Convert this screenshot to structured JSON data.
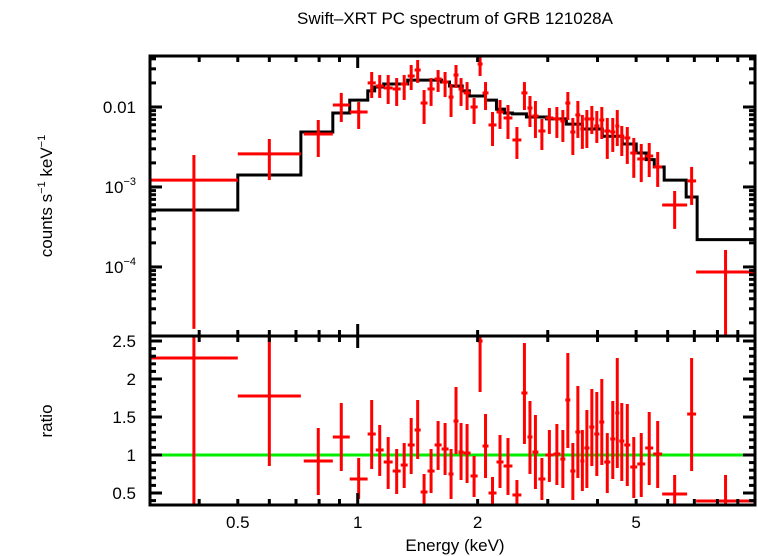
{
  "chart_data": [
    {
      "type": "scatter",
      "panel": "spectrum",
      "title": "Swift–XRT PC spectrum of GRB 121028A",
      "xlabel": "Energy (keV)",
      "ylabel": {
        "text": "counts s",
        "exp1": "−1",
        "mid": " keV",
        "exp2": "−1"
      },
      "xscale": "log",
      "yscale": "log",
      "xlim": [
        0.301,
        9.94
      ],
      "ylim": [
        1.37e-05,
        0.0434
      ],
      "grid": false,
      "yticks": [
        {
          "value": 0.01,
          "label": "0.01"
        },
        {
          "value": 0.001,
          "base": "10",
          "exp": "−3"
        },
        {
          "value": 0.0001,
          "base": "10",
          "exp": "−4"
        }
      ],
      "colors": {
        "data": "#ff0000",
        "model": "#000000",
        "axis": "#000000"
      },
      "columns": [
        "e_lo",
        "e_hi",
        "rate",
        "rate_err_a",
        "rate_err_b",
        "ratio",
        "ratio_err_a",
        "ratio_err_b"
      ],
      "points": [
        [
          0.301,
          0.5,
          0.00122,
          0.00251,
          1.68e-05,
          2.276,
          3.0,
          0.2
        ],
        [
          0.5,
          0.72,
          0.00259,
          0.00398,
          0.00122,
          1.776,
          3.0,
          0.855
        ],
        [
          0.732,
          0.866,
          0.0046,
          0.00688,
          0.00237,
          0.921,
          1.355,
          0.474
        ],
        [
          0.866,
          0.955,
          0.0106,
          0.015,
          0.00649,
          1.237,
          1.684,
          0.789
        ],
        [
          0.955,
          1.059,
          0.00866,
          0.01155,
          0.00531,
          0.684,
          0.961,
          0.421
        ],
        [
          1.059,
          1.11,
          0.02,
          0.0274,
          0.01296,
          1.276,
          1.724,
          0.816
        ],
        [
          1.11,
          1.162,
          0.0183,
          0.0251,
          0.01296,
          1.066,
          1.395,
          0.724
        ],
        [
          1.162,
          1.224,
          0.0173,
          0.0251,
          0.0109,
          0.908,
          1.237,
          0.553
        ],
        [
          1.224,
          1.282,
          0.0168,
          0.023,
          0.0103,
          0.789,
          1.079,
          0.487
        ],
        [
          1.282,
          1.335,
          0.0194,
          0.0251,
          0.01224,
          0.868,
          1.158,
          0.566
        ],
        [
          1.335,
          1.39,
          0.0244,
          0.0335,
          0.0163,
          1.132,
          1.487,
          0.75
        ],
        [
          1.39,
          1.439,
          0.029,
          0.0387,
          0.02,
          1.329,
          1.724,
          0.947
        ],
        [
          1.439,
          1.497,
          0.0112,
          0.0163,
          0.00613,
          0.513,
          0.75,
          0.2
        ],
        [
          1.497,
          1.56,
          0.0168,
          0.023,
          0.0103,
          0.789,
          1.079,
          0.5
        ],
        [
          1.56,
          1.624,
          0.0224,
          0.029,
          0.0154,
          1.132,
          1.447,
          0.803
        ],
        [
          1.624,
          1.691,
          0.0205,
          0.0274,
          0.0133,
          1.079,
          1.421,
          0.737
        ],
        [
          1.691,
          1.74,
          0.0133,
          0.0194,
          0.0075,
          0.75,
          1.079,
          0.421
        ],
        [
          1.74,
          1.791,
          0.0251,
          0.0335,
          0.0173,
          1.447,
          1.895,
          1.013
        ],
        [
          1.791,
          1.844,
          0.0168,
          0.023,
          0.0103,
          1.039,
          1.421,
          0.671
        ],
        [
          1.844,
          1.92,
          0.015,
          0.0205,
          0.00917,
          1.026,
          1.408,
          0.632
        ],
        [
          1.92,
          2.0,
          0.01,
          0.01296,
          0.00613,
          0.724,
          0.987,
          0.447
        ],
        [
          2.0,
          2.058,
          0.0345,
          0.0434,
          0.0244,
          2.5,
          3.0,
          1.829
        ],
        [
          2.058,
          2.13,
          0.015,
          0.0205,
          0.00917,
          1.118,
          1.539,
          0.697
        ],
        [
          2.13,
          2.231,
          0.00596,
          0.00866,
          0.00325,
          0.5,
          0.711,
          0.2
        ],
        [
          2.231,
          2.323,
          0.00866,
          0.01224,
          0.00531,
          0.908,
          1.263,
          0.566
        ],
        [
          2.323,
          2.446,
          0.00729,
          0.0106,
          0.00398,
          0.855,
          1.224,
          0.474
        ],
        [
          2.446,
          2.576,
          0.00387,
          0.00562,
          0.00224,
          0.474,
          0.671,
          0.2
        ],
        [
          2.576,
          2.668,
          0.015,
          0.0205,
          0.00917,
          1.816,
          2.474,
          1.145
        ],
        [
          2.668,
          2.746,
          0.00972,
          0.01373,
          0.00562,
          1.237,
          1.711,
          0.75
        ],
        [
          2.746,
          2.842,
          0.00772,
          0.01189,
          0.0041,
          1.039,
          1.526,
          0.553
        ],
        [
          2.842,
          2.959,
          0.00501,
          0.00708,
          0.0029,
          0.684,
          0.961,
          0.408
        ],
        [
          2.959,
          3.099,
          0.00729,
          0.00972,
          0.0046,
          1.0,
          1.329,
          0.645
        ],
        [
          3.099,
          3.227,
          0.00708,
          0.01,
          0.0041,
          1.013,
          1.408,
          0.605
        ],
        [
          3.227,
          3.321,
          0.00668,
          0.00917,
          0.00365,
          0.947,
          1.329,
          0.566
        ],
        [
          3.321,
          3.418,
          0.0112,
          0.0154,
          0.00688,
          1.724,
          2.342,
          1.092
        ],
        [
          3.418,
          3.519,
          0.00487,
          0.00729,
          0.00251,
          0.789,
          1.158,
          0.408
        ],
        [
          3.519,
          3.622,
          0.00794,
          0.01189,
          0.0041,
          1.303,
          1.908,
          0.697
        ],
        [
          3.622,
          3.707,
          0.00531,
          0.00794,
          0.00299,
          0.921,
          1.329,
          0.526
        ],
        [
          3.707,
          3.816,
          0.00708,
          0.00917,
          0.00307,
          1.092,
          1.592,
          0.566
        ],
        [
          3.816,
          3.926,
          0.00708,
          0.0103,
          0.0046,
          1.368,
          1.868,
          0.855
        ],
        [
          3.926,
          4.042,
          0.00579,
          0.00891,
          0.00355,
          1.276,
          1.829,
          0.724
        ],
        [
          4.042,
          4.159,
          0.00688,
          0.01,
          0.00398,
          1.434,
          2.0,
          0.868
        ],
        [
          4.159,
          4.306,
          0.00501,
          0.00729,
          0.00224,
          0.908,
          1.289,
          0.5
        ],
        [
          4.306,
          4.432,
          0.00487,
          0.00729,
          0.00274,
          1.211,
          1.711,
          0.684
        ],
        [
          4.432,
          4.536,
          0.00579,
          0.00917,
          0.00325,
          1.553,
          2.276,
          0.829
        ],
        [
          4.536,
          4.669,
          0.00434,
          0.00579,
          0.00244,
          1.184,
          1.684,
          0.658
        ],
        [
          4.669,
          4.834,
          0.0041,
          0.00562,
          0.00194,
          1.132,
          1.671,
          0.592
        ],
        [
          4.834,
          5.033,
          0.00266,
          0.0041,
          0.0013,
          0.842,
          1.237,
          0.434
        ],
        [
          5.033,
          5.27,
          0.00224,
          0.00345,
          0.00115,
          0.882,
          1.289,
          0.447
        ],
        [
          5.27,
          5.519,
          0.00244,
          0.00355,
          0.00133,
          1.092,
          1.566,
          0.605
        ],
        [
          5.519,
          5.812,
          0.00178,
          0.00274,
          0.001,
          1.013,
          1.447,
          0.566
        ],
        [
          5.812,
          6.715,
          0.000596,
          0.000891,
          0.000299,
          0.487,
          0.737,
          0.2
        ],
        [
          6.715,
          7.072,
          0.00119,
          0.00178,
          0.000596,
          1.539,
          2.276,
          0.789
        ],
        [
          7.072,
          9.94,
          8.66e-05,
          0.000163,
          1e-05,
          0.395,
          0.737,
          0.2
        ]
      ],
      "model_columns": [
        "e_lo",
        "e_hi",
        "rate"
      ],
      "model": [
        [
          0.301,
          0.5,
          0.000516
        ],
        [
          0.5,
          0.72,
          0.00141
        ],
        [
          0.72,
          0.866,
          0.00487
        ],
        [
          0.866,
          0.955,
          0.0084
        ],
        [
          0.955,
          1.06,
          0.0122
        ],
        [
          1.06,
          1.103,
          0.0159
        ],
        [
          1.103,
          1.162,
          0.0178
        ],
        [
          1.162,
          1.335,
          0.0194
        ],
        [
          1.335,
          1.624,
          0.0217
        ],
        [
          1.624,
          1.7,
          0.0205
        ],
        [
          1.7,
          1.83,
          0.0183
        ],
        [
          1.83,
          1.907,
          0.0159
        ],
        [
          1.907,
          2.093,
          0.0137
        ],
        [
          2.093,
          2.23,
          0.0122
        ],
        [
          2.23,
          2.336,
          0.0094
        ],
        [
          2.336,
          2.446,
          0.0084
        ],
        [
          2.446,
          2.652,
          0.0082
        ],
        [
          2.652,
          2.976,
          0.0075
        ],
        [
          2.976,
          3.34,
          0.0071
        ],
        [
          3.34,
          3.664,
          0.0061
        ],
        [
          3.664,
          4.112,
          0.0053
        ],
        [
          4.112,
          4.615,
          0.0043
        ],
        [
          4.615,
          5.003,
          0.00345
        ],
        [
          5.003,
          5.3,
          0.00266
        ],
        [
          5.3,
          5.553,
          0.0022
        ],
        [
          5.553,
          5.88,
          0.00178
        ],
        [
          5.88,
          6.677,
          0.00122
        ],
        [
          6.677,
          7.114,
          0.00075
        ],
        [
          7.114,
          9.94,
          0.00022
        ]
      ]
    },
    {
      "type": "scatter",
      "panel": "ratio",
      "ylabel": "ratio",
      "xlabel": "Energy (keV)",
      "xscale": "log",
      "yscale": "linear",
      "ylim": [
        0.342,
        2.566
      ],
      "yticks": [
        {
          "value": 0.5,
          "label": "0.5"
        },
        {
          "value": 1,
          "label": "1"
        },
        {
          "value": 1.5,
          "label": "1.5"
        },
        {
          "value": 2,
          "label": "2"
        },
        {
          "value": 2.5,
          "label": "2.5"
        }
      ],
      "xticks": [
        {
          "value": 0.5,
          "label": "0.5"
        },
        {
          "value": 1,
          "label": "1"
        },
        {
          "value": 2,
          "label": "2"
        },
        {
          "value": 5,
          "label": "5"
        }
      ],
      "reference_line": {
        "value": 1,
        "color": "#00ee00"
      }
    }
  ]
}
